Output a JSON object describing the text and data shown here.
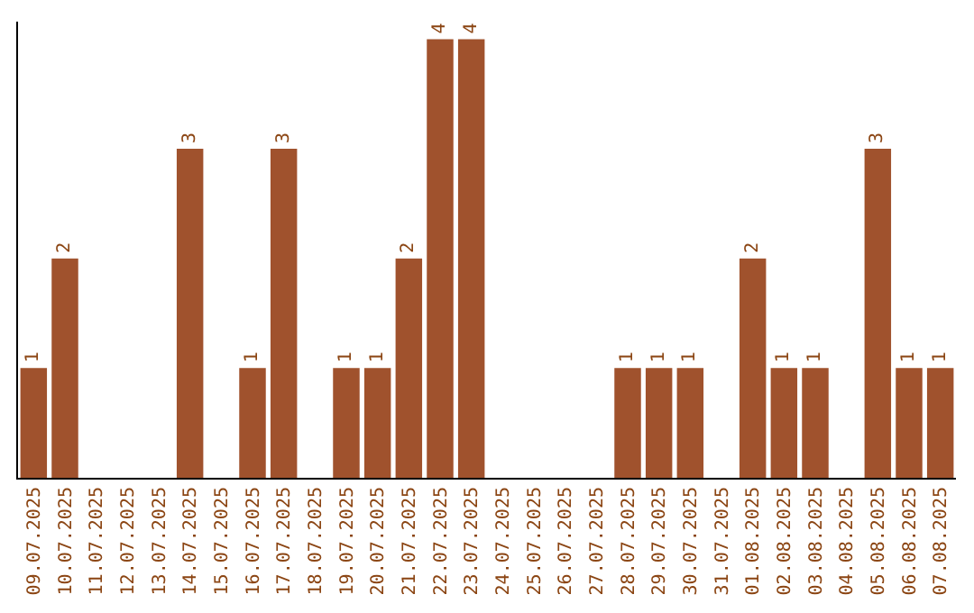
{
  "chart_data": {
    "type": "bar",
    "categories": [
      "09.07.2025",
      "10.07.2025",
      "11.07.2025",
      "12.07.2025",
      "13.07.2025",
      "14.07.2025",
      "15.07.2025",
      "16.07.2025",
      "17.07.2025",
      "18.07.2025",
      "19.07.2025",
      "20.07.2025",
      "21.07.2025",
      "22.07.2025",
      "23.07.2025",
      "24.07.2025",
      "25.07.2025",
      "26.07.2025",
      "27.07.2025",
      "28.07.2025",
      "29.07.2025",
      "30.07.2025",
      "31.07.2025",
      "01.08.2025",
      "02.08.2025",
      "03.08.2025",
      "04.08.2025",
      "05.08.2025",
      "06.08.2025",
      "07.08.2025"
    ],
    "values": [
      1,
      2,
      0,
      0,
      0,
      3,
      0,
      1,
      3,
      0,
      1,
      1,
      2,
      4,
      4,
      0,
      0,
      0,
      0,
      1,
      1,
      1,
      0,
      2,
      1,
      1,
      0,
      3,
      1,
      1
    ],
    "value_labels": [
      "1",
      "2",
      null,
      null,
      null,
      "3",
      null,
      "1",
      "3",
      null,
      "1",
      "1",
      "2",
      "4",
      "4",
      null,
      null,
      null,
      null,
      "1",
      "1",
      "1",
      null,
      "2",
      "1",
      "1",
      null,
      "3",
      "1",
      "1"
    ],
    "color": "#a0522d",
    "legend": false
  }
}
